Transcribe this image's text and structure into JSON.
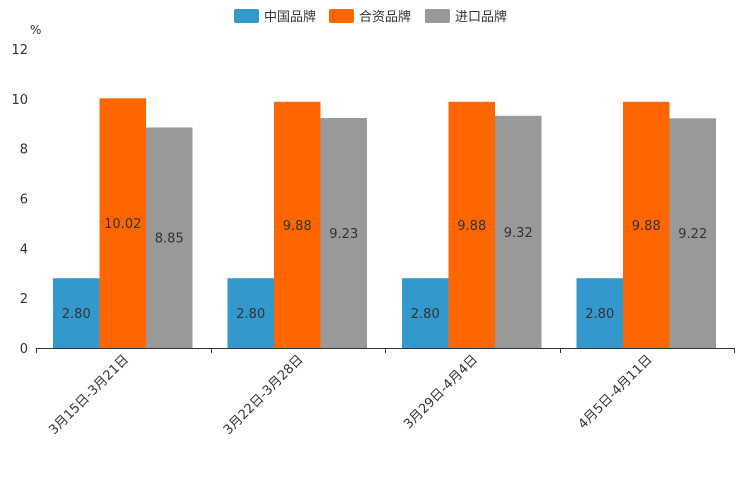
{
  "chart_data": {
    "type": "bar",
    "title": "",
    "xlabel": "",
    "ylabel": "%",
    "ylim": [
      0,
      12
    ],
    "yticks": [
      0,
      2,
      4,
      6,
      8,
      10,
      12
    ],
    "grid": false,
    "legend_position": "top-center",
    "categories": [
      "3月15日-3月21日",
      "3月22日-3月28日",
      "3月29日-4月4日",
      "4月5日-4月11日"
    ],
    "series": [
      {
        "name": "中国品牌",
        "color": "#3399cc",
        "values": [
          2.8,
          2.8,
          2.8,
          2.8
        ],
        "labels": [
          "2.80",
          "2.80",
          "2.80",
          "2.80"
        ]
      },
      {
        "name": "合资品牌",
        "color": "#ff6600",
        "values": [
          10.02,
          9.88,
          9.88,
          9.88
        ],
        "labels": [
          "10.02",
          "9.88",
          "9.88",
          "9.88"
        ]
      },
      {
        "name": "进口品牌",
        "color": "#999999",
        "values": [
          8.85,
          9.23,
          9.32,
          9.22
        ],
        "labels": [
          "8.85",
          "9.23",
          "9.32",
          "9.22"
        ]
      }
    ]
  }
}
